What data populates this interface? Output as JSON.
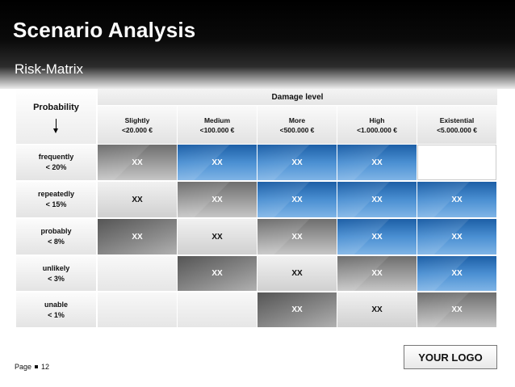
{
  "title": "Scenario Analysis",
  "subtitle": "Risk-Matrix",
  "matrix": {
    "probability_label": "Probability",
    "damage_label": "Damage level",
    "columns": [
      {
        "line1": "Slightly",
        "line2": "<20.000 €"
      },
      {
        "line1": "Medium",
        "line2": "<100.000 €"
      },
      {
        "line1": "More",
        "line2": "<500.000 €"
      },
      {
        "line1": "High",
        "line2": "<1.000.000 €"
      },
      {
        "line1": "Existential",
        "line2": "<5.000.000 €"
      }
    ],
    "rows": [
      {
        "line1": "frequently",
        "line2": "< 20%",
        "cells": [
          "XX",
          "XX",
          "XX",
          "XX",
          ""
        ]
      },
      {
        "line1": "repeatedly",
        "line2": "< 15%",
        "cells": [
          "XX",
          "XX",
          "XX",
          "XX",
          "XX"
        ]
      },
      {
        "line1": "probably",
        "line2": "< 8%",
        "cells": [
          "XX",
          "XX",
          "XX",
          "XX",
          "XX"
        ]
      },
      {
        "line1": "unlikely",
        "line2": "< 3%",
        "cells": [
          "",
          "XX",
          "XX",
          "XX",
          "XX"
        ]
      },
      {
        "line1": "unable",
        "line2": "< 1%",
        "cells": [
          "",
          "",
          "XX",
          "XX",
          "XX"
        ]
      }
    ]
  },
  "footer": {
    "page_label": "Page",
    "page_number": "12"
  },
  "logo": "YOUR LOGO",
  "colors": {
    "risk_high": "#2f76c0",
    "risk_medium": "#8c8c8c",
    "header_bg": "#000000"
  }
}
